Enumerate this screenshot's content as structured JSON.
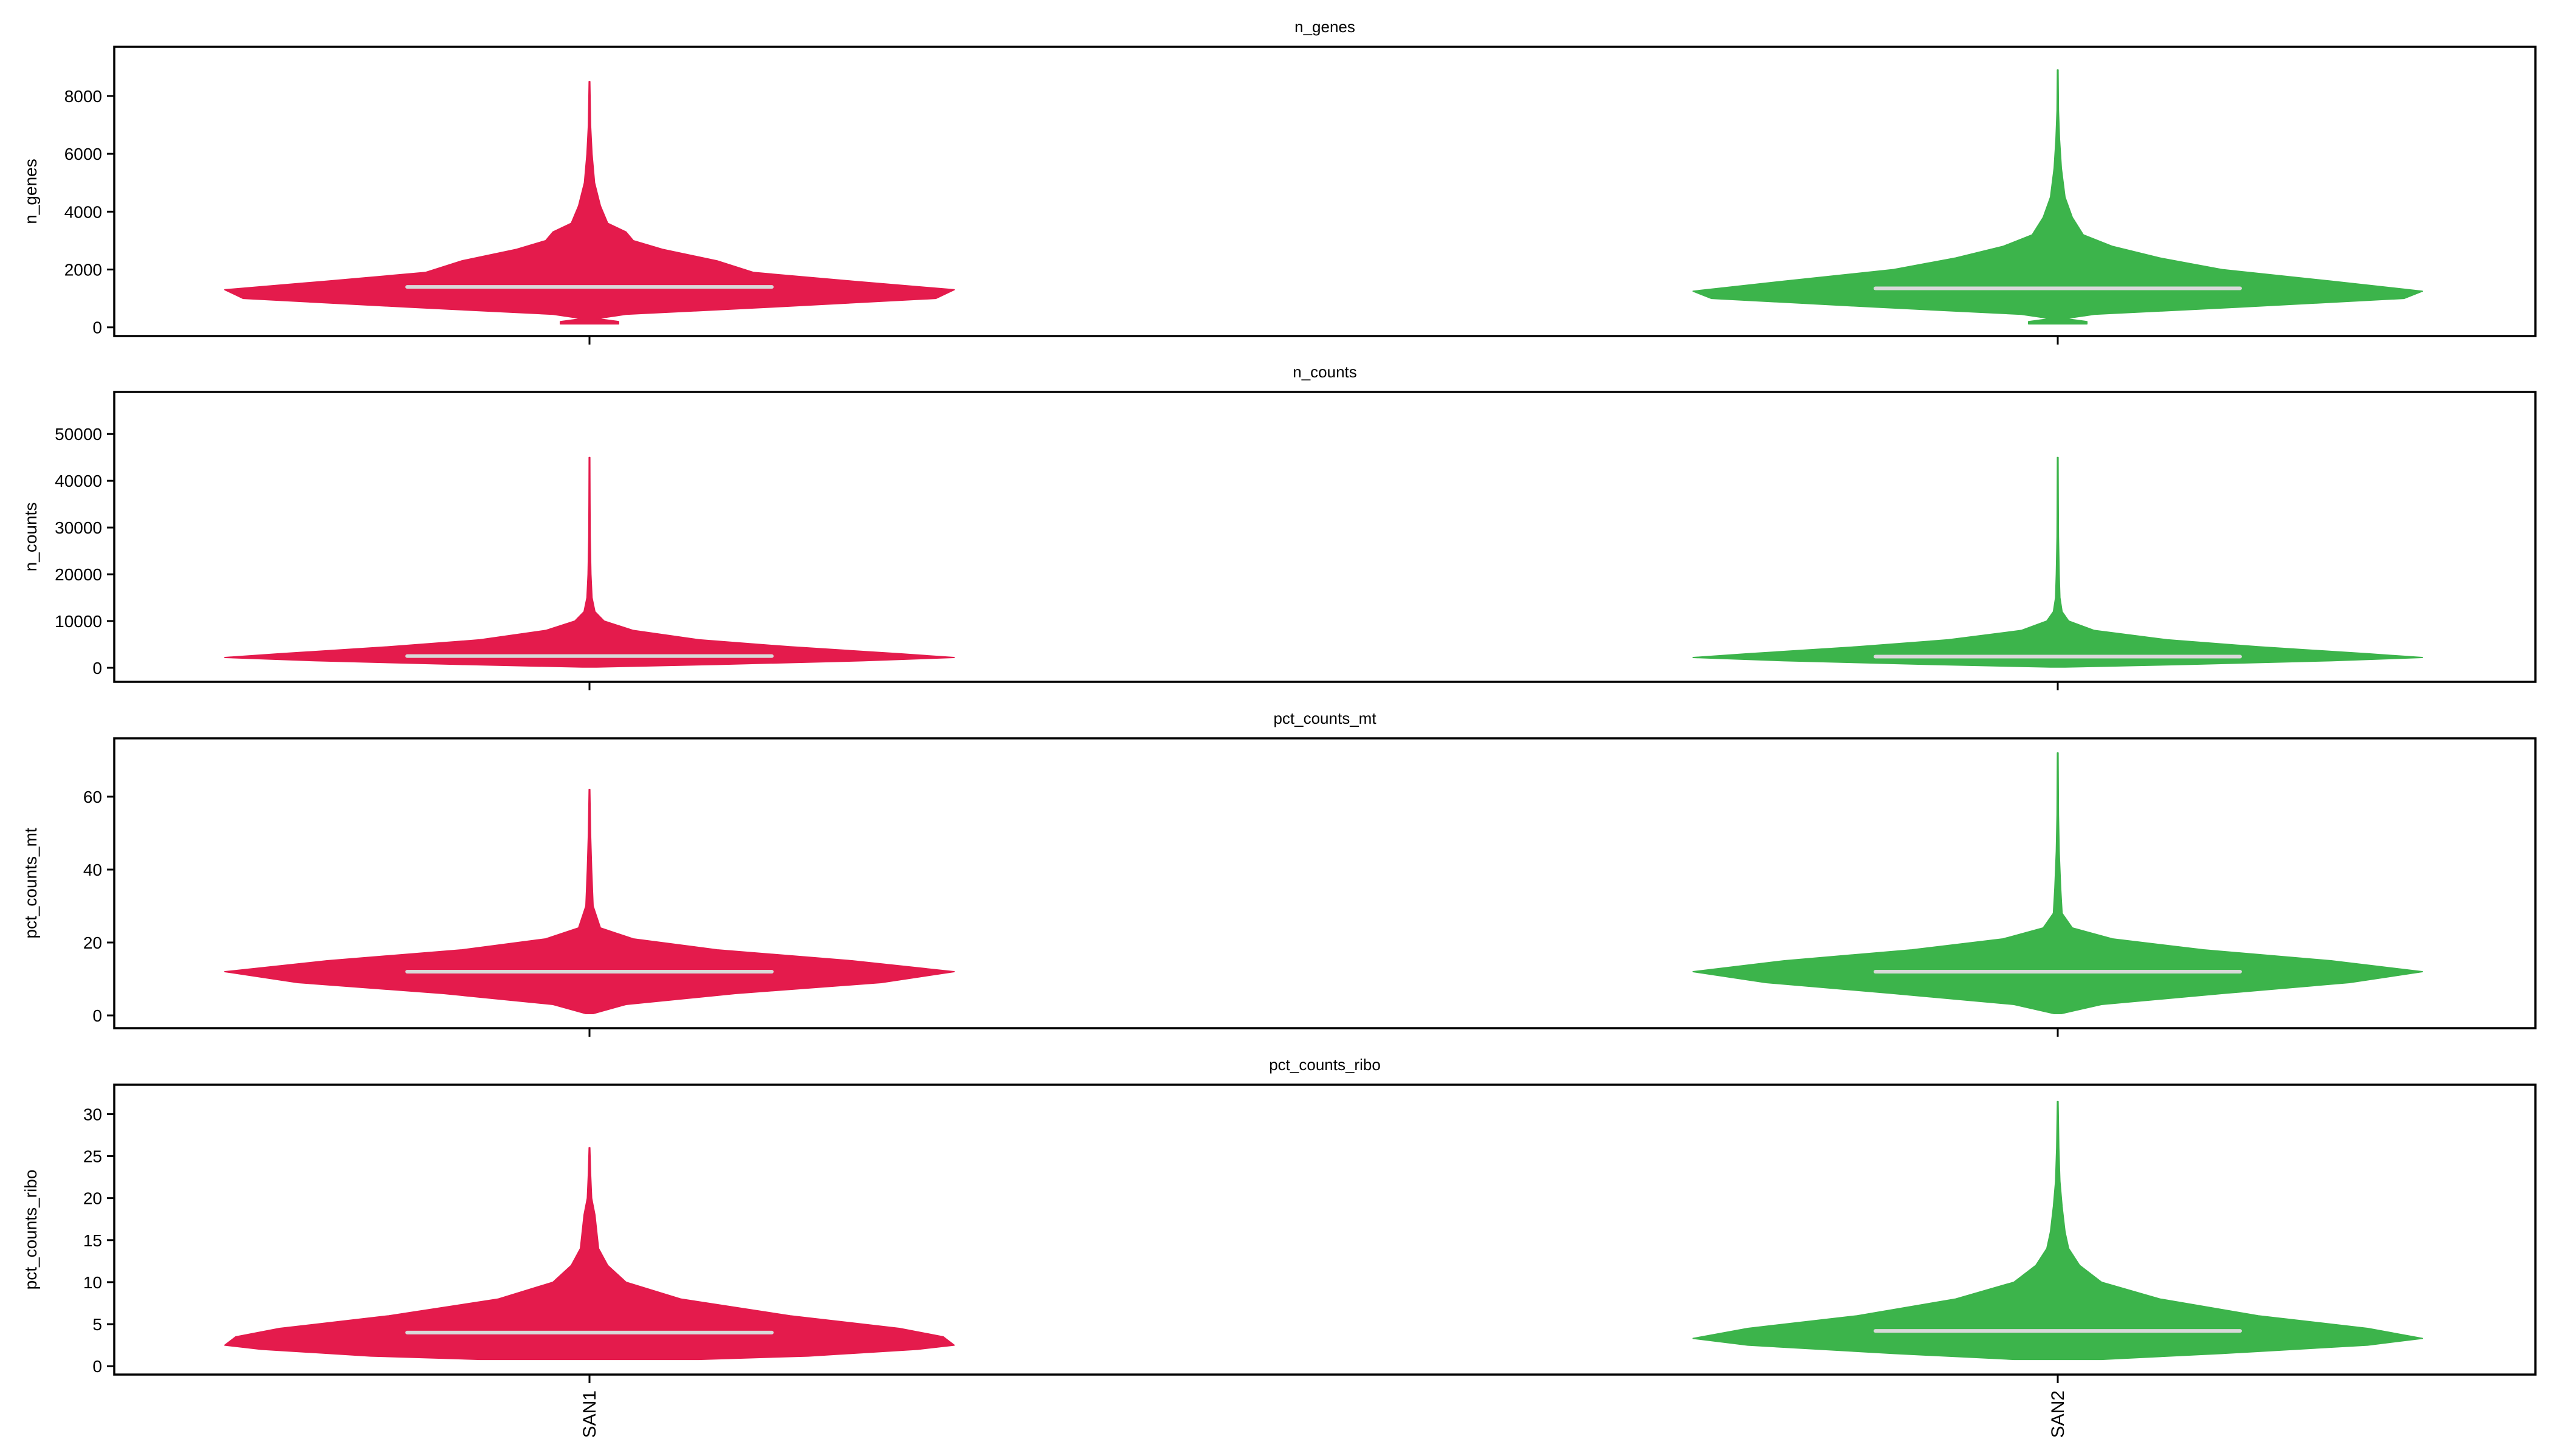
{
  "chart_data": [
    {
      "type": "violin",
      "title": "n_genes",
      "ylabel": "n_genes",
      "ylim": [
        -300,
        9700
      ],
      "yticks": [
        0,
        2000,
        4000,
        6000,
        8000
      ],
      "categories": [
        "SAN1",
        "SAN2"
      ],
      "series": [
        {
          "category": "SAN1",
          "color": "#e41b4c",
          "median": 1400,
          "max": 8500,
          "profile": [
            [
              120,
              0.08
            ],
            [
              200,
              0.08
            ],
            [
              300,
              0.02
            ],
            [
              450,
              0.1
            ],
            [
              700,
              0.5
            ],
            [
              1000,
              0.95
            ],
            [
              1300,
              1.0
            ],
            [
              1600,
              0.72
            ],
            [
              1900,
              0.45
            ],
            [
              2300,
              0.35
            ],
            [
              2700,
              0.2
            ],
            [
              3000,
              0.12
            ],
            [
              3300,
              0.1
            ],
            [
              3600,
              0.05
            ],
            [
              4200,
              0.03
            ],
            [
              5000,
              0.014
            ],
            [
              6000,
              0.007
            ],
            [
              7000,
              0.003
            ],
            [
              8500,
              0.001
            ]
          ]
        },
        {
          "category": "SAN2",
          "color": "#3cb44b",
          "median": 1350,
          "max": 8900,
          "profile": [
            [
              120,
              0.08
            ],
            [
              200,
              0.08
            ],
            [
              300,
              0.02
            ],
            [
              450,
              0.1
            ],
            [
              700,
              0.5
            ],
            [
              1000,
              0.95
            ],
            [
              1250,
              1.0
            ],
            [
              1600,
              0.75
            ],
            [
              2000,
              0.45
            ],
            [
              2400,
              0.28
            ],
            [
              2800,
              0.15
            ],
            [
              3200,
              0.07
            ],
            [
              3800,
              0.04
            ],
            [
              4500,
              0.02
            ],
            [
              5500,
              0.01
            ],
            [
              6500,
              0.005
            ],
            [
              7500,
              0.002
            ],
            [
              8900,
              0.001
            ]
          ]
        }
      ]
    },
    {
      "type": "violin",
      "title": "n_counts",
      "ylabel": "n_counts",
      "ylim": [
        -3000,
        59000
      ],
      "yticks": [
        0,
        10000,
        20000,
        30000,
        40000,
        50000
      ],
      "categories": [
        "SAN1",
        "SAN2"
      ],
      "series": [
        {
          "category": "SAN1",
          "color": "#e41b4c",
          "median": 2500,
          "max": 45000,
          "profile": [
            [
              150,
              0.02
            ],
            [
              700,
              0.35
            ],
            [
              1500,
              0.75
            ],
            [
              2200,
              1.0
            ],
            [
              3000,
              0.85
            ],
            [
              4500,
              0.55
            ],
            [
              6000,
              0.3
            ],
            [
              8000,
              0.12
            ],
            [
              10000,
              0.04
            ],
            [
              12000,
              0.015
            ],
            [
              15000,
              0.007
            ],
            [
              20000,
              0.004
            ],
            [
              28000,
              0.002
            ],
            [
              35000,
              0.0015
            ],
            [
              45000,
              0.001
            ]
          ]
        },
        {
          "category": "SAN2",
          "color": "#3cb44b",
          "median": 2400,
          "max": 45000,
          "profile": [
            [
              150,
              0.02
            ],
            [
              700,
              0.35
            ],
            [
              1500,
              0.75
            ],
            [
              2200,
              1.0
            ],
            [
              3000,
              0.85
            ],
            [
              4500,
              0.55
            ],
            [
              6000,
              0.3
            ],
            [
              8000,
              0.1
            ],
            [
              10000,
              0.03
            ],
            [
              12000,
              0.012
            ],
            [
              15000,
              0.006
            ],
            [
              20000,
              0.004
            ],
            [
              28000,
              0.002
            ],
            [
              35000,
              0.0015
            ],
            [
              45000,
              0.001
            ]
          ]
        }
      ]
    },
    {
      "type": "violin",
      "title": "pct_counts_mt",
      "ylabel": "pct_counts_mt",
      "ylim": [
        -3.5,
        76
      ],
      "yticks": [
        0,
        20,
        40,
        60
      ],
      "categories": [
        "SAN1",
        "SAN2"
      ],
      "series": [
        {
          "category": "SAN1",
          "color": "#e41b4c",
          "median": 12,
          "max": 62,
          "profile": [
            [
              0.5,
              0.01
            ],
            [
              3,
              0.1
            ],
            [
              6,
              0.4
            ],
            [
              9,
              0.8
            ],
            [
              12,
              1.0
            ],
            [
              15,
              0.72
            ],
            [
              18,
              0.35
            ],
            [
              21,
              0.12
            ],
            [
              24,
              0.03
            ],
            [
              30,
              0.01
            ],
            [
              40,
              0.006
            ],
            [
              50,
              0.003
            ],
            [
              62,
              0.001
            ]
          ]
        },
        {
          "category": "SAN2",
          "color": "#3cb44b",
          "median": 12,
          "max": 72,
          "profile": [
            [
              0.5,
              0.01
            ],
            [
              3,
              0.12
            ],
            [
              6,
              0.45
            ],
            [
              9,
              0.8
            ],
            [
              12,
              1.0
            ],
            [
              15,
              0.75
            ],
            [
              18,
              0.4
            ],
            [
              21,
              0.15
            ],
            [
              24,
              0.04
            ],
            [
              28,
              0.012
            ],
            [
              35,
              0.008
            ],
            [
              45,
              0.004
            ],
            [
              55,
              0.002
            ],
            [
              72,
              0.001
            ]
          ]
        }
      ]
    },
    {
      "type": "violin",
      "title": "pct_counts_ribo",
      "ylabel": "pct_counts_ribo",
      "ylim": [
        -1,
        33.5
      ],
      "yticks": [
        0,
        5,
        10,
        15,
        20,
        25,
        30
      ],
      "categories": [
        "SAN1",
        "SAN2"
      ],
      "series": [
        {
          "category": "SAN1",
          "color": "#e41b4c",
          "median": 4,
          "max": 26,
          "profile": [
            [
              0.8,
              0.3
            ],
            [
              1.2,
              0.6
            ],
            [
              2,
              0.9
            ],
            [
              2.5,
              1.0
            ],
            [
              3.5,
              0.97
            ],
            [
              4.5,
              0.85
            ],
            [
              6,
              0.55
            ],
            [
              8,
              0.25
            ],
            [
              10,
              0.1
            ],
            [
              12,
              0.05
            ],
            [
              14,
              0.025
            ],
            [
              16,
              0.02
            ],
            [
              18,
              0.015
            ],
            [
              20,
              0.006
            ],
            [
              23,
              0.003
            ],
            [
              26,
              0.001
            ]
          ]
        },
        {
          "category": "SAN2",
          "color": "#3cb44b",
          "median": 4.2,
          "max": 31.5,
          "profile": [
            [
              0.8,
              0.12
            ],
            [
              1.5,
              0.45
            ],
            [
              2.5,
              0.85
            ],
            [
              3.3,
              1.0
            ],
            [
              4.5,
              0.85
            ],
            [
              6,
              0.55
            ],
            [
              8,
              0.28
            ],
            [
              10,
              0.12
            ],
            [
              12,
              0.06
            ],
            [
              14,
              0.03
            ],
            [
              16,
              0.02
            ],
            [
              19,
              0.012
            ],
            [
              22,
              0.006
            ],
            [
              26,
              0.003
            ],
            [
              31.5,
              0.001
            ]
          ]
        }
      ]
    }
  ]
}
